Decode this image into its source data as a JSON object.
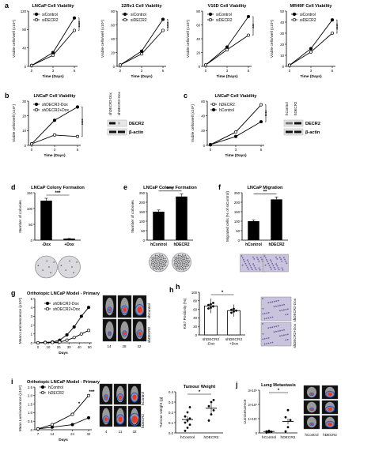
{
  "chart_data": [
    {
      "type": "line",
      "panel_letter": "a",
      "title": "LNCaP Cell Viability",
      "xlabel": "Time (Days)",
      "ylabel": "Viable cells/well (x10⁴)",
      "x": [
        0,
        3,
        6
      ],
      "xticks": [
        "0",
        "3",
        "6"
      ],
      "ylim": [
        0,
        120
      ],
      "yticks": [
        "0",
        "40",
        "80",
        "120"
      ],
      "series": [
        {
          "name": "siControl",
          "marker": "filled",
          "values": [
            2,
            30,
            105
          ]
        },
        {
          "name": "siDECR2",
          "marker": "open",
          "values": [
            2,
            24,
            78
          ]
        }
      ],
      "annotation": "****"
    },
    {
      "type": "line",
      "title": "22Rv1 Cell Viability",
      "xlabel": "Time (Days)",
      "ylabel": "Viable cells/well (x10⁴)",
      "x": [
        0,
        3,
        6
      ],
      "xticks": [
        "0",
        "3",
        "6"
      ],
      "ylim": [
        0,
        80
      ],
      "yticks": [
        "0",
        "20",
        "40",
        "60",
        "80"
      ],
      "series": [
        {
          "name": "siControl",
          "marker": "filled",
          "values": [
            2,
            22,
            68
          ]
        },
        {
          "name": "siDECR2",
          "marker": "open",
          "values": [
            2,
            18,
            52
          ]
        }
      ],
      "annotation": "****"
    },
    {
      "type": "line",
      "title": "V16D Cell Viability",
      "xlabel": "Time (Days)",
      "ylabel": "Viable cells/well (x10⁴)",
      "x": [
        0,
        3,
        6
      ],
      "xticks": [
        "0",
        "3",
        "6"
      ],
      "ylim": [
        0,
        80
      ],
      "yticks": [
        "0",
        "20",
        "40",
        "60",
        "80"
      ],
      "series": [
        {
          "name": "siControl",
          "marker": "filled",
          "values": [
            2,
            28,
            72
          ]
        },
        {
          "name": "siDECR2",
          "marker": "open",
          "values": [
            2,
            24,
            45
          ]
        }
      ],
      "annotation": "***"
    },
    {
      "type": "line",
      "title": "MR49F Cell Viability",
      "xlabel": "Time (Days)",
      "ylabel": "Viable cells/well (x10⁴)",
      "x": [
        0,
        3,
        6
      ],
      "xticks": [
        "0",
        "3",
        "6"
      ],
      "ylim": [
        0,
        50
      ],
      "yticks": [
        "0",
        "10",
        "20",
        "30",
        "40",
        "50"
      ],
      "series": [
        {
          "name": "siControl",
          "marker": "filled",
          "values": [
            1,
            16,
            42
          ]
        },
        {
          "name": "siDECR2",
          "marker": "open",
          "values": [
            1,
            13,
            30
          ]
        }
      ],
      "annotation": "****"
    },
    {
      "type": "line",
      "panel_letter": "b",
      "title": "LNCaP Cell Viability",
      "xlabel": "Time (Days)",
      "ylabel": "Viable cells/well (x10⁴)",
      "x": [
        0,
        3,
        6
      ],
      "xticks": [
        "0",
        "3",
        "6"
      ],
      "ylim": [
        0,
        30
      ],
      "yticks": [
        "0",
        "10",
        "20",
        "30"
      ],
      "series": [
        {
          "name": "shDECR2-Dox",
          "marker": "filled",
          "values": [
            1,
            17,
            26
          ]
        },
        {
          "name": "shDECR2+Dox",
          "marker": "open",
          "values": [
            1,
            7,
            6
          ]
        }
      ],
      "annotation": "****",
      "blot": {
        "lanes": [
          "shDECR2-Dox",
          "shDECR2+Dox"
        ],
        "bands": [
          "DECR2",
          "β-actin"
        ]
      }
    },
    {
      "type": "line",
      "panel_letter": "c",
      "title": "LNCaP Cell Viability",
      "xlabel": "Time (Days)",
      "ylabel": "Viable cells/well (x10⁴)",
      "x": [
        0,
        3,
        6
      ],
      "xticks": [
        "0",
        "3",
        "6"
      ],
      "ylim": [
        0,
        60
      ],
      "yticks": [
        "0",
        "20",
        "40",
        "60"
      ],
      "series": [
        {
          "name": "hDECR2",
          "marker": "open",
          "values": [
            1,
            18,
            55
          ]
        },
        {
          "name": "hControl",
          "marker": "filled",
          "values": [
            1,
            12,
            32
          ]
        }
      ],
      "annotation": "****",
      "blot": {
        "lanes": [
          "hControl",
          "hDECR2"
        ],
        "bands": [
          "DECR2",
          "β-actin"
        ]
      }
    },
    {
      "type": "bar",
      "panel_letter": "d",
      "title": "LNCaP Colony Formation",
      "ylabel": "Number of colonies",
      "categories": [
        "-Dox",
        "+Dox"
      ],
      "values": [
        125,
        5
      ],
      "ylim": [
        0,
        150
      ],
      "yticks": [
        "0",
        "50",
        "100",
        "150"
      ],
      "annotation": "***"
    },
    {
      "type": "bar",
      "panel_letter": "e",
      "title": "LNCaP Colony Formation",
      "ylabel": "Number of colonies",
      "categories": [
        "hControl",
        "hDECR2"
      ],
      "values": [
        150,
        230
      ],
      "ylim": [
        0,
        250
      ],
      "yticks": [
        "0",
        "50",
        "100",
        "150",
        "200",
        "250"
      ],
      "annotation": "****"
    },
    {
      "type": "bar",
      "panel_letter": "f",
      "title": "LNCaP Migration",
      "ylabel": "Migrated cells (% of siControl)",
      "categories": [
        "hControl",
        "hDECR2"
      ],
      "values": [
        100,
        215
      ],
      "ylim": [
        0,
        250
      ],
      "yticks": [
        "0",
        "50",
        "100",
        "150",
        "200",
        "250"
      ],
      "annotation": "**"
    },
    {
      "type": "line",
      "panel_letter": "g",
      "title": "Orthotopic LNCaP Model - Primary",
      "xlabel": "Days",
      "ylabel": "Mean Luminescence (x10⁸)",
      "x": [
        0,
        7,
        14,
        21,
        28,
        35,
        42,
        49
      ],
      "xticks": [
        "0",
        "10",
        "20",
        "30",
        "40",
        "50"
      ],
      "ylim": [
        0,
        5
      ],
      "yticks": [
        "0",
        "1",
        "2",
        "3",
        "4",
        "5"
      ],
      "series": [
        {
          "name": "shDECR2-Dox",
          "marker": "filled",
          "values": [
            0,
            0.05,
            0.1,
            0.3,
            0.9,
            1.8,
            3,
            4
          ]
        },
        {
          "name": "shDECR2+Dox",
          "marker": "open",
          "values": [
            0,
            0.03,
            0.05,
            0.1,
            0.3,
            0.6,
            1,
            1.4
          ]
        }
      ],
      "image_labels": [
        "shControl",
        "shDECR2",
        "14",
        "28",
        "42"
      ]
    },
    {
      "type": "scatter",
      "panel_letter": "h",
      "ylabel": "Ki67 Positivity (%)",
      "categories": [
        "shDECR2 -Dox",
        "shDECR2 +Dox"
      ],
      "values": [
        68,
        57
      ],
      "ylim": [
        0,
        100
      ],
      "yticks": [
        "0",
        "20",
        "40",
        "60",
        "80",
        "100"
      ],
      "annotation": "*",
      "points": [
        [
          62,
          64,
          67,
          70,
          72,
          75
        ],
        [
          52,
          55,
          57,
          59,
          61
        ]
      ],
      "image_labels": [
        "shDECR2-Dox",
        "shDECR2+Dox"
      ]
    },
    {
      "type": "line",
      "panel_letter": "i",
      "title": "Orthotopic LNCaP Model - Primary",
      "xlabel": "Days",
      "ylabel": "Mean Luminescence (x10⁹)",
      "x": [
        7,
        14,
        24,
        32
      ],
      "xticks": [
        "7",
        "14",
        "24",
        "32"
      ],
      "ylim": [
        0,
        2.5
      ],
      "yticks": [
        "0",
        "0.5",
        "1.0",
        "1.5",
        "2.0",
        "2.5"
      ],
      "series": [
        {
          "name": "hControl",
          "marker": "filled",
          "values": [
            0.05,
            0.15,
            0.3,
            0.7
          ]
        },
        {
          "name": "hDECR2",
          "marker": "open",
          "values": [
            0.05,
            0.3,
            0.9,
            2.0
          ]
        }
      ],
      "annotation": [
        "*",
        "***"
      ],
      "image_labels": [
        "hControl",
        "hDECR2",
        "4",
        "11",
        "32"
      ]
    },
    {
      "type": "scatter",
      "title": "Tumour Weight",
      "ylabel": "Tumour weight (g)",
      "categories": [
        "hControl",
        "hDECR2"
      ],
      "values": [
        0.13,
        0.24
      ],
      "ylim": [
        0,
        0.4
      ],
      "yticks": [
        "0.0",
        "0.1",
        "0.2",
        "0.3",
        "0.4"
      ],
      "annotation": "*",
      "points": [
        [
          0.02,
          0.05,
          0.08,
          0.1,
          0.12,
          0.14,
          0.16,
          0.2,
          0.25
        ],
        [
          0.12,
          0.18,
          0.22,
          0.26,
          0.3,
          0.32
        ]
      ]
    },
    {
      "type": "scatter",
      "panel_letter": "j",
      "title": "Lung Metastasis",
      "ylabel": "Luminescence",
      "categories": [
        "hControl",
        "hDECR2"
      ],
      "values": [
        0.1,
        0.8
      ],
      "ylim": [
        0,
        3
      ],
      "yticks": [
        "0",
        "1×10⁶",
        "2×10⁶",
        "3×10⁶"
      ],
      "annotation": "*",
      "points": [
        [
          0.02,
          0.05,
          0.08,
          0.1,
          0.15
        ],
        [
          0.1,
          0.4,
          0.9,
          1.1,
          1.6
        ]
      ],
      "image_labels": [
        "hControl",
        "hDECR2"
      ]
    }
  ]
}
